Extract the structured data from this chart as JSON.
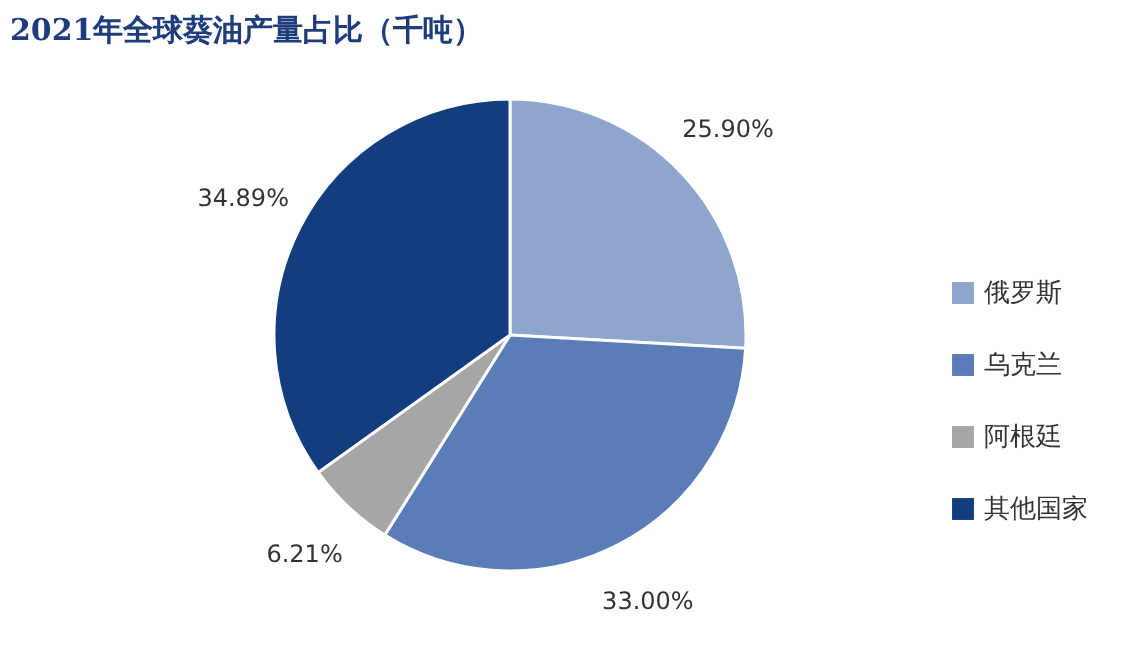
{
  "chart_data": {
    "type": "pie",
    "title": "2021年全球葵油产量占比（千吨）",
    "categories": [
      "俄罗斯",
      "乌克兰",
      "阿根廷",
      "其他国家"
    ],
    "values": [
      25.9,
      33.0,
      6.21,
      34.89
    ],
    "colors": [
      "#8ea6cd",
      "#5b7db7",
      "#a6a6a6",
      "#123d7e"
    ],
    "value_labels": [
      "25.90%",
      "33.00%",
      "6.21%",
      "34.89%"
    ],
    "legend": "right"
  }
}
